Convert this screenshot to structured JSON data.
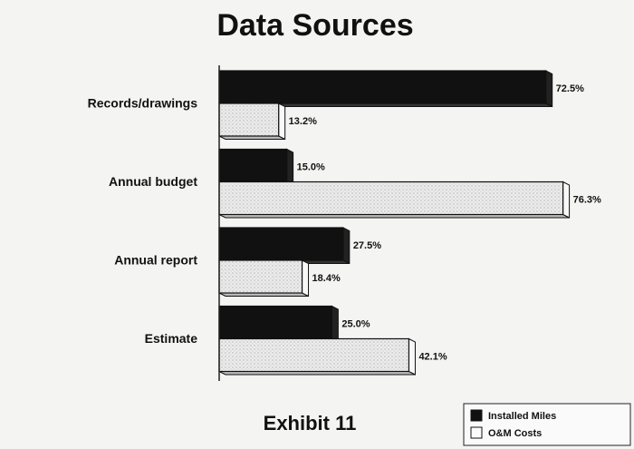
{
  "chart_data": {
    "type": "bar",
    "orientation": "horizontal",
    "title": "Data Sources",
    "caption": "Exhibit 11",
    "categories": [
      "Records/drawings",
      "Annual budget",
      "Annual report",
      "Estimate"
    ],
    "series": [
      {
        "name": "Installed Miles",
        "color": "#111111",
        "values": [
          72.5,
          15.0,
          27.5,
          25.0
        ],
        "value_labels": [
          "72.5%",
          "15.0%",
          "27.5%",
          "25.0%"
        ]
      },
      {
        "name": "O&M Costs",
        "color": "#e6e6e6",
        "values": [
          13.2,
          76.3,
          18.4,
          42.1
        ],
        "value_labels": [
          "13.2%",
          "76.3%",
          "18.4%",
          "42.1%"
        ]
      }
    ],
    "xlim": [
      0,
      80
    ],
    "legend": "lower right"
  }
}
